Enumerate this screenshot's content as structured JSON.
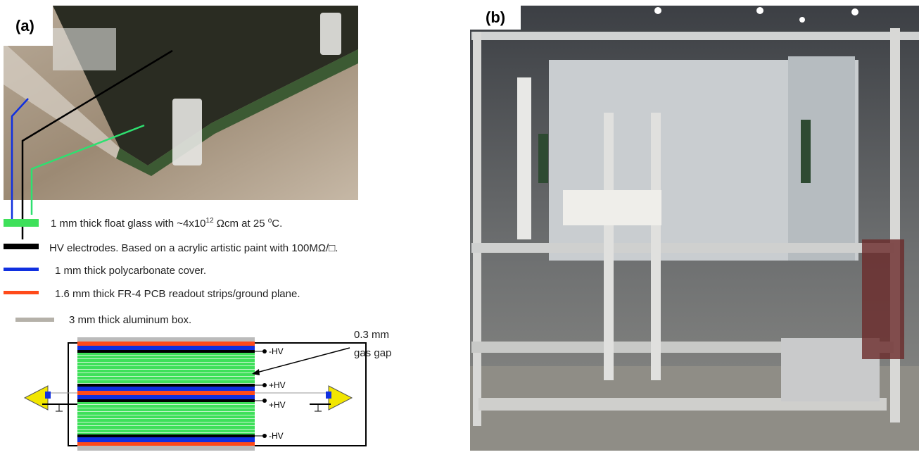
{
  "panel_a": {
    "label": "(a)",
    "legend": [
      {
        "parts": [
          "1 mm thick float glass with ~4x10",
          "12",
          " Ωcm at 25 ",
          "o",
          "C."
        ]
      },
      {
        "parts": [
          "HV electrodes. Based on a acrylic artistic paint with 100MΩ/□."
        ]
      },
      {
        "parts": [
          "1 mm thick polycarbonate cover."
        ]
      },
      {
        "parts": [
          "1.6 mm thick FR-4 PCB readout strips/ground plane."
        ]
      },
      {
        "parts": [
          "3 mm thick aluminum box."
        ]
      }
    ],
    "annotation": [
      "0.3 mm",
      "gas gap"
    ],
    "hv_labels": [
      "-HV",
      "+HV",
      "+HV",
      "-HV"
    ]
  },
  "panel_b": {
    "label": "(b)"
  }
}
